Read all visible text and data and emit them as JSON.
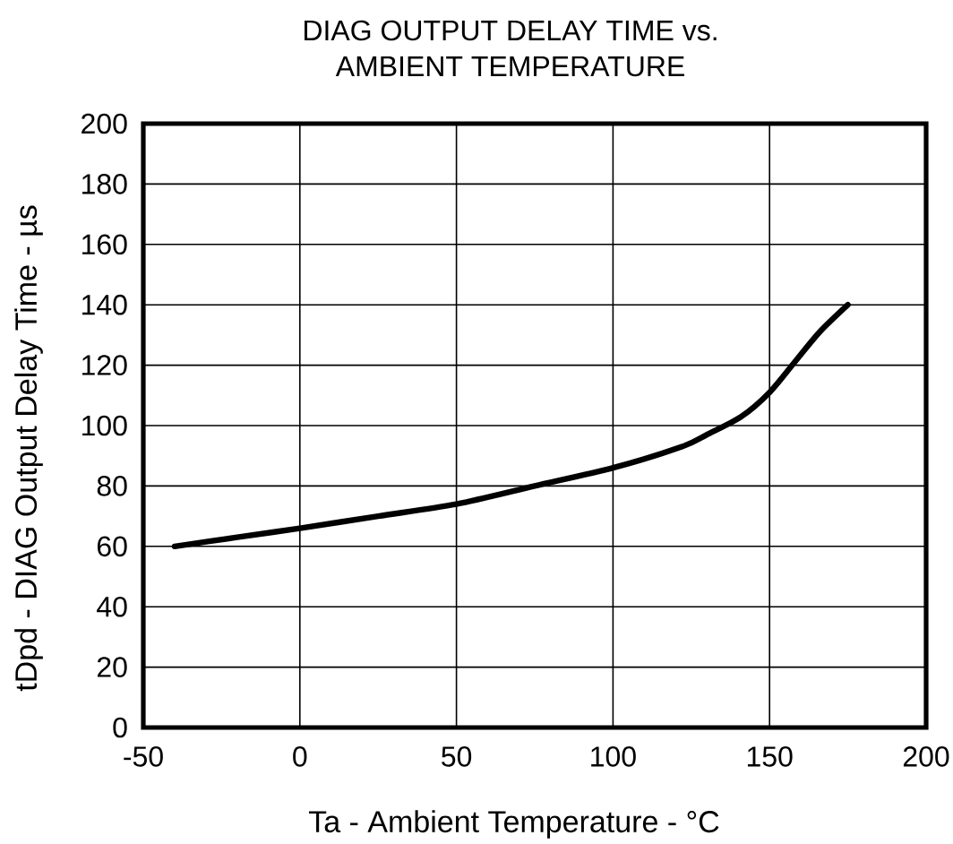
{
  "chart_data": {
    "type": "line",
    "title": "DIAG OUTPUT  DELAY TIME vs. AMBIENT TEMPERATURE",
    "xlabel": "Ta - Ambient Temperature - °C",
    "ylabel": "tDpd - DIAG Output Delay Time - µs",
    "x": [
      -40,
      -20,
      0,
      25,
      50,
      75,
      100,
      122,
      130,
      141,
      150,
      158,
      166,
      175
    ],
    "values": [
      60,
      63,
      66,
      70,
      74,
      80,
      86,
      93,
      97,
      103,
      111,
      121,
      131,
      140
    ],
    "color": "#000000",
    "xlim": [
      -50,
      200
    ],
    "ylim": [
      0,
      200
    ],
    "xticks": [
      -50,
      0,
      50,
      100,
      150,
      200
    ],
    "yticks": [
      0,
      20,
      40,
      60,
      80,
      100,
      120,
      140,
      160,
      180,
      200
    ],
    "grid": true,
    "line_style": "solid"
  }
}
